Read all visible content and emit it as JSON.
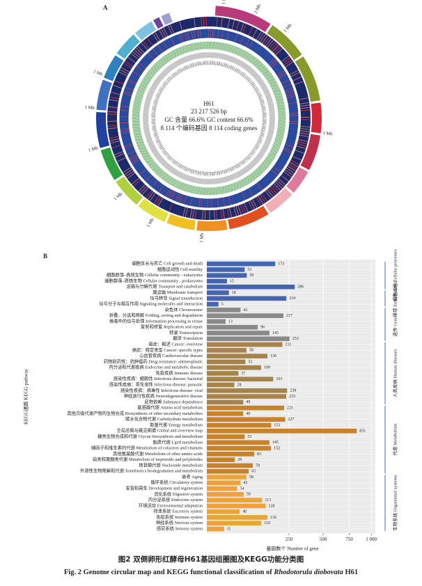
{
  "panel_a": {
    "label": "A",
    "name": "H61",
    "length": "23 217 526 bp",
    "gc": "GC 含量 66.6% GC content 66.6%",
    "genes": "8 114 个编码基因 8 114 coding genes",
    "scale_labels": [
      "1 Mb",
      "2 Mb",
      "1 Mb",
      "1 Mb",
      "1 Mb",
      "1 Mb",
      "1 Mb",
      "1 Mb",
      "1 Mb",
      "1 Mb"
    ]
  },
  "chart_data": {
    "type": "bar",
    "orientation": "horizontal",
    "label": "B",
    "x_scale": "sqrt",
    "xlabel": "基因数个 Number of gene",
    "ylabel": "KEGG通路 KEGG pathway",
    "xlim": [
      0,
      1050
    ],
    "xticks": [
      250,
      500,
      750,
      {
        "value": 1000,
        "label": "1 000"
      }
    ],
    "grid": true,
    "groups": [
      {
        "name": "细胞过程 Cellular processes",
        "color": "#4565b0",
        "categories": [
          "细胞生长与死亡 Cell growth and death",
          "细胞运动性 Cell motility",
          "细胞群落–真核生物 Cellular community - eukaryotes",
          "细胞群落–原核生物 Cellular community - prokaryotes",
          "运输与分解代谢 Transport and catabolism"
        ],
        "values": [
          173,
          53,
          59,
          15,
          286
        ]
      },
      {
        "name": "环境 Environmental",
        "color": "#4565b0",
        "categories": [
          "膜运输 Membrane transport",
          "信号转导 Signal transduction",
          "信号分子与相互作用 Signaling molecules and interaction"
        ],
        "values": [
          18,
          234,
          5
        ]
      },
      {
        "name": "遗传 Genetic",
        "color": "#8a8a8a",
        "categories": [
          "染色体 Chromosome",
          "折叠、分选和降解 Folding, sorting and degradation",
          "病毒中的信号处理 Information processing in viruse",
          "复制和修复 Replication and repair",
          "转录 Transcription",
          "翻译 Translation"
        ],
        "values": [
          42,
          217,
          13,
          96,
          145,
          253
        ]
      },
      {
        "name": "人类疾病 Human diseases",
        "color": "#a6834b",
        "categories": [
          "癌症：概述 Cancer: overview",
          "癌症：特定类型 Cancer: specific types",
          "心血管疾病 Cardiovascular disease",
          "药物耐药性：抗肿瘤药 Drug resistance: antineoplastic",
          "内分泌和代谢疾病 Endocrine and metabolic disease",
          "免疫疾病 Immune disease",
          "感染性疾病：细菌性 Infectious disease: bacterial",
          "感染性疾病：寄生虫性 Infectious disease: parasitic",
          "感染性疾病：病毒性 Infectious disease: viral",
          "神经退行性疾病 Neurodegenerative disease",
          "底物依赖 Substance dependence"
        ],
        "values": [
          211,
          58,
          136,
          55,
          109,
          37,
          163,
          28,
          238,
          233,
          49
        ]
      },
      {
        "name": "代谢 Metabolism",
        "color": "#c6832a",
        "categories": [
          "氨基酸代谢 Amino acid metabolism",
          "其他次级代谢产物的生物合成 Biosynthesis of other secondary metabolites",
          "碳水化合物代谢 Carbohydrate metabolism",
          "能量代谢 Energy metabolism",
          "全局总图与概览图谱 Global and overview map",
          "糖类生物合成和代谢 Glycan biosynthesis and metabolism",
          "脂质代谢 Lipid metabolism",
          "辅因子和维生素的代谢 Metabolism of cofactors and vitamins",
          "其他氨基酸代谢 Metabolism of other amino acids",
          "萜类和聚酮类代谢 Metabolism of terpenoids and polyketides",
          "核苷酸代谢 Nucleotide metabolism",
          "外源性生物降解和代谢 Xenobiotics biodegradation and metabolism"
        ],
        "values": [
          221,
          49,
          227,
          153,
          831,
          53,
          145,
          152,
          83,
          29,
          78,
          65
        ]
      },
      {
        "name": "生物系统 Organismal systems",
        "color": "#eea23a",
        "categories": [
          "衰老 Aging",
          "循环系统 Circulatory system",
          "发育和再生 Development and regeneration",
          "消化系统 Digestive system",
          "内分泌系统 Endocrine system",
          "环境适应 Environmental adaptation",
          "排泄系统 Excretory system",
          "免疫系统 Immune system",
          "神经系统 Nervous system",
          "感官系统 Sensory system"
        ],
        "values": [
          58,
          42,
          34,
          50,
          113,
          128,
          40,
          136,
          110,
          11
        ]
      }
    ]
  },
  "caption": {
    "cn": "图2 双倒卵形红酵母H61基因组圈图及KEGG功能分类图",
    "en_prefix": "Fig. 2 Genome circular map and KEGG functional classification of",
    "en_species": "Rhodotorula diobovata",
    "en_suffix": "H61"
  }
}
